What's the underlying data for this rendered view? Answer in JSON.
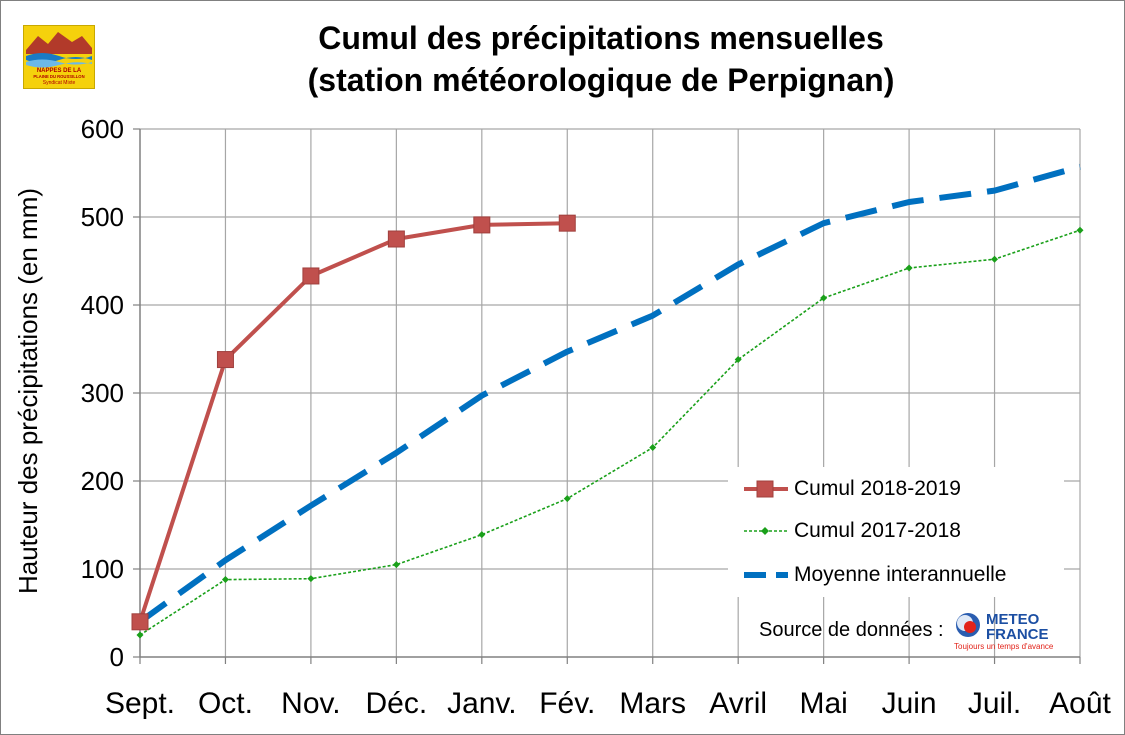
{
  "chart_data": {
    "type": "line",
    "title": "Cumul des précipitations mensuelles\n(station météorologique de Perpignan)",
    "ylabel": "Hauteur des précipitations (en mm)",
    "xlabel": "",
    "ylim": [
      0,
      600
    ],
    "yticks": [
      0,
      100,
      200,
      300,
      400,
      500,
      600
    ],
    "grid": true,
    "legend_position": "bottom-right",
    "categories": [
      "Sept.",
      "Oct.",
      "Nov.",
      "Déc.",
      "Janv.",
      "Fév.",
      "Mars",
      "Avril",
      "Mai",
      "Juin",
      "Juil.",
      "Août"
    ],
    "series": [
      {
        "name": "Cumul 2018-2019",
        "color": "#c0504d",
        "style": "solid-square-markers",
        "values": [
          40,
          338,
          433,
          475,
          491,
          493,
          null,
          null,
          null,
          null,
          null,
          null
        ]
      },
      {
        "name": "Cumul 2017-2018",
        "color": "#1aa01a",
        "style": "dotted-diamond-markers",
        "values": [
          25,
          88,
          89,
          105,
          139,
          180,
          238,
          338,
          408,
          442,
          452,
          485
        ]
      },
      {
        "name": "Moyenne interannuelle",
        "color": "#0070c0",
        "style": "dashed",
        "values": [
          40,
          110,
          172,
          232,
          297,
          347,
          388,
          446,
          493,
          517,
          530,
          557
        ]
      }
    ]
  },
  "source": {
    "label": "Source de données :",
    "logo_main": "METEO",
    "logo_sub": "FRANCE",
    "logo_tagline": "Toujours un temps d'avance"
  },
  "syndicat_logo": {
    "line1": "NAPPES DE LA",
    "line2": "PLAINE DU ROUSSILLON",
    "line3": "Syndicat Mixte"
  }
}
